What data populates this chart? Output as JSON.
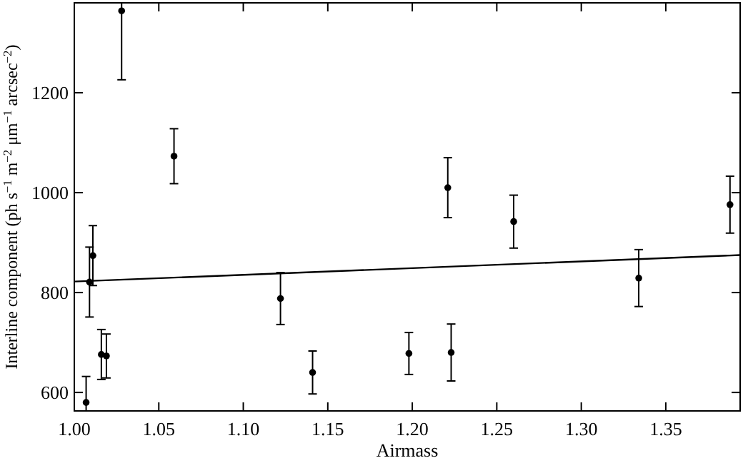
{
  "chart_data": {
    "type": "scatter",
    "xlabel": "Airmass",
    "ylabel": "Interline component (ph s$^{−1}$ m$^{−2}$ μm$^{−1}$ arcsec$^{−2}$)",
    "xlim": [
      1.0,
      1.394
    ],
    "ylim": [
      563,
      1380
    ],
    "xticks": [
      {
        "value": 1.0,
        "label": "1.00"
      },
      {
        "value": 1.05,
        "label": "1.05"
      },
      {
        "value": 1.1,
        "label": "1.10"
      },
      {
        "value": 1.15,
        "label": "1.15"
      },
      {
        "value": 1.2,
        "label": "1.20"
      },
      {
        "value": 1.25,
        "label": "1.25"
      },
      {
        "value": 1.3,
        "label": "1.30"
      },
      {
        "value": 1.35,
        "label": "1.35"
      }
    ],
    "yticks": [
      600,
      800,
      1000,
      1200
    ],
    "grid": false,
    "series": [
      {
        "color": "#000000",
        "marker": "circle",
        "x": [
          1.007,
          1.009,
          1.011,
          1.016,
          1.019,
          1.028,
          1.059,
          1.122,
          1.141,
          1.198,
          1.221,
          1.223,
          1.26,
          1.334,
          1.388
        ],
        "values": [
          580,
          821,
          874,
          676,
          673,
          1364,
          1073,
          788,
          640,
          678,
          1010,
          680,
          942,
          829,
          976
        ],
        "errors": [
          [
            563,
            632
          ],
          70,
          60,
          50,
          44,
          [
            1226,
            1380
          ],
          55,
          52,
          43,
          42,
          60,
          57,
          53,
          57,
          57
        ]
      },
      {
        "type": "line",
        "color": "#000000",
        "line_style": "solid",
        "x": [
          1.0,
          1.394
        ],
        "values": [
          822,
          875
        ]
      }
    ]
  }
}
